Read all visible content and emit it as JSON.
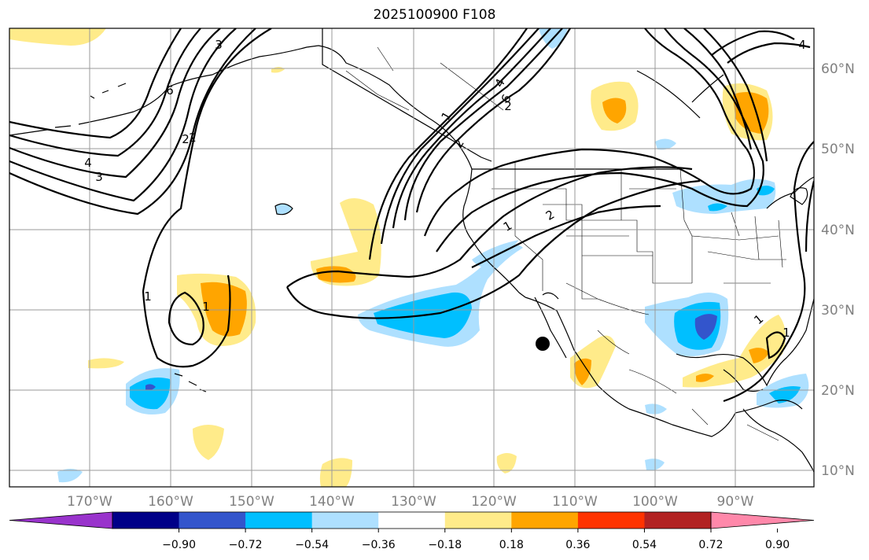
{
  "title": "2025100900 F108",
  "map": {
    "lon_ticks": [
      "170°W",
      "160°W",
      "150°W",
      "140°W",
      "130°W",
      "120°W",
      "110°W",
      "100°W",
      "90°W"
    ],
    "lat_ticks": [
      "60°N",
      "50°N",
      "40°N",
      "30°N",
      "20°N",
      "10°N"
    ],
    "contour_labels": [
      "1",
      "2",
      "3",
      "4",
      "6",
      "1",
      "2",
      "3",
      "4",
      "6",
      "1",
      "2",
      "1",
      "2",
      "4",
      "1",
      "1",
      "2"
    ]
  },
  "colorbar": {
    "ticks": [
      "−0.90",
      "−0.72",
      "−0.54",
      "−0.36",
      "−0.18",
      "0.18",
      "0.36",
      "0.54",
      "0.72",
      "0.90"
    ],
    "colors": [
      "#9933cc",
      "#000088",
      "#3355cc",
      "#00bfff",
      "#aee0ff",
      "#ffffff",
      "#ffeb8a",
      "#ffa500",
      "#ff3300",
      "#b22222",
      "#ff88aa"
    ]
  }
}
